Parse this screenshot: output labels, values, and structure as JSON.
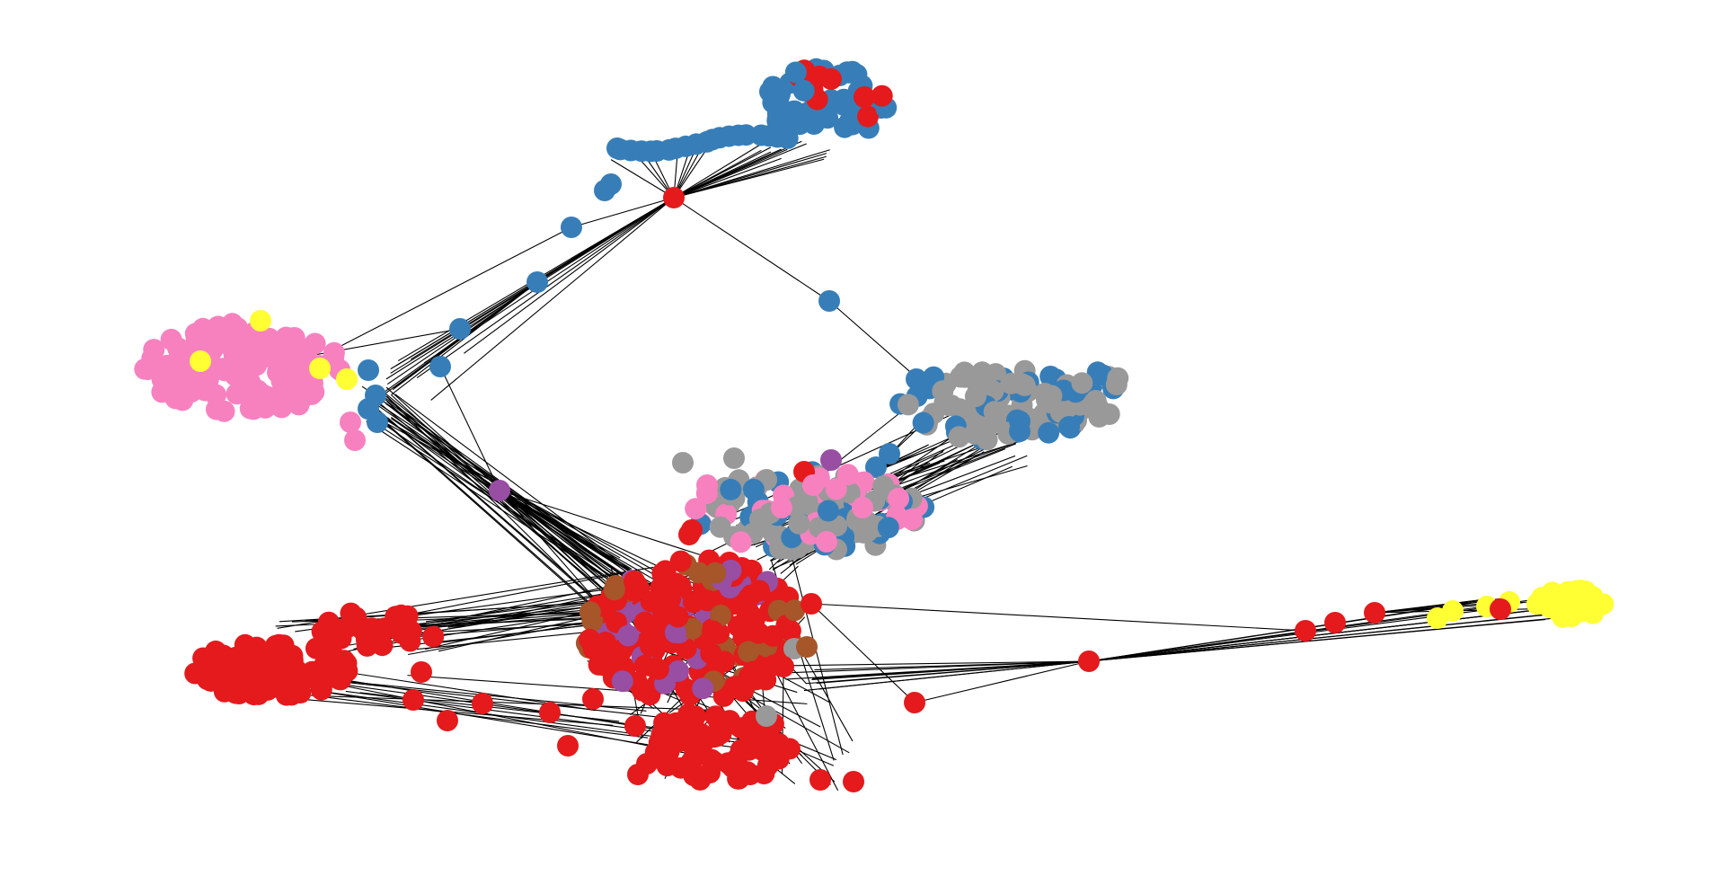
{
  "figure": {
    "type": "network-graph",
    "background": "#ffffff",
    "edge_color": "#000000",
    "palette": {
      "red": "#e41a1c",
      "blue": "#377eb8",
      "purple": "#984ea3",
      "brown": "#a65628",
      "pink": "#f781bf",
      "gray": "#999999",
      "yellow": "#ffff33"
    },
    "clusters": [
      {
        "name": "top-blue-cluster",
        "dominant_color": "blue",
        "secondary_color": "red"
      },
      {
        "name": "left-pink-cluster",
        "dominant_color": "pink",
        "secondary_color": "yellow"
      },
      {
        "name": "right-gray-cluster",
        "dominant_color": "gray",
        "secondary_color": "blue"
      },
      {
        "name": "center-mixed-cluster",
        "dominant_color": "gray",
        "secondary_color": "pink"
      },
      {
        "name": "central-red-cluster",
        "dominant_color": "red",
        "secondary_color": "brown"
      },
      {
        "name": "bottom-left-red-cluster",
        "dominant_color": "red",
        "secondary_color": "red"
      },
      {
        "name": "far-right-yellow-cluster",
        "dominant_color": "yellow",
        "secondary_color": "red"
      }
    ]
  }
}
